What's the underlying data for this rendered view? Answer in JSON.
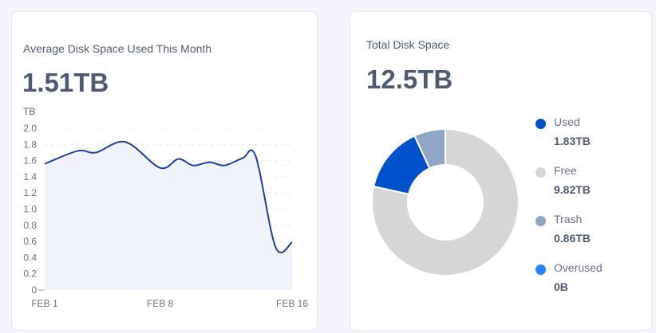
{
  "chart_data": [
    {
      "type": "area",
      "title": "Average Disk Space Used This Month",
      "summary": "1.51TB",
      "ylabel": "TB",
      "ylim": [
        0,
        2.0
      ],
      "yticks": [
        "0",
        "0.2",
        "0.4",
        "0.6",
        "0.8",
        "1.0",
        "1.2",
        "1.4",
        "1.6",
        "1.8",
        "2.0"
      ],
      "xticks": [
        {
          "day": 0,
          "label": "FEB 1"
        },
        {
          "day": 7,
          "label": "FEB 8"
        },
        {
          "day": 15,
          "label": "FEB 16"
        }
      ],
      "xlim": [
        0,
        15
      ],
      "x": [
        0,
        2,
        3.1,
        4.9,
        7,
        8.1,
        9,
        10,
        10.9,
        12,
        12.8,
        14,
        15
      ],
      "y": [
        1.56,
        1.72,
        1.7,
        1.83,
        1.51,
        1.62,
        1.54,
        1.58,
        1.54,
        1.63,
        1.65,
        0.53,
        0.59
      ],
      "line_color": "#1e3fa0",
      "fill_color": "#f0f3fc",
      "grid": true
    },
    {
      "type": "pie",
      "title": "Total Disk Space",
      "summary": "12.5TB",
      "legend": "right",
      "slices": [
        {
          "label": "Free",
          "value": 9.82,
          "display": "9.82TB",
          "color": "#d6d6d6"
        },
        {
          "label": "Used",
          "value": 1.83,
          "display": "1.83TB",
          "color": "#0052cc"
        },
        {
          "label": "Trash",
          "value": 0.86,
          "display": "0.86TB",
          "color": "#8fa6c6"
        },
        {
          "label": "Overused",
          "value": 0,
          "display": "0B",
          "color": "#2684ff"
        }
      ],
      "legend_order": [
        1,
        0,
        2,
        3
      ]
    }
  ]
}
